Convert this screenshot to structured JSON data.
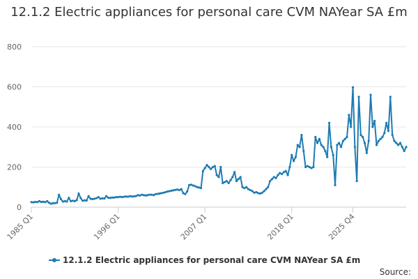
{
  "chart_data": {
    "type": "line",
    "title": "12.1.2 Electric appliances for personal care CVM NAYear SA £m",
    "xlabel": "",
    "ylabel": "",
    "ylim": [
      0,
      800
    ],
    "yticks": [
      0,
      200,
      400,
      600,
      800
    ],
    "x_tick_labels": [
      "1985 Q1",
      "1996 Q1",
      "2007 Q1",
      "2018 Q1",
      "2025 Q4"
    ],
    "series_color": "#1d7bb3",
    "grid": true,
    "legend_position": "bottom",
    "source_label": "Source:",
    "series": [
      {
        "name": "12.1.2 Electric appliances for personal care CVM NAYear SA £m",
        "start_year": 1985,
        "start_quarter": 1,
        "values": [
          25,
          24,
          26,
          25,
          30,
          26,
          27,
          25,
          30,
          22,
          17,
          20,
          20,
          22,
          62,
          40,
          28,
          30,
          28,
          46,
          30,
          32,
          30,
          35,
          68,
          45,
          32,
          34,
          33,
          55,
          42,
          40,
          42,
          45,
          50,
          42,
          44,
          43,
          55,
          47,
          46,
          48,
          48,
          50,
          50,
          52,
          50,
          52,
          53,
          52,
          55,
          53,
          54,
          55,
          60,
          58,
          62,
          60,
          58,
          60,
          62,
          62,
          60,
          65,
          66,
          68,
          70,
          72,
          75,
          78,
          80,
          82,
          84,
          86,
          88,
          85,
          90,
          70,
          65,
          78,
          110,
          112,
          108,
          105,
          100,
          98,
          95,
          180,
          195,
          210,
          200,
          190,
          200,
          205,
          160,
          150,
          200,
          120,
          125,
          130,
          120,
          135,
          150,
          175,
          130,
          140,
          150,
          100,
          95,
          100,
          90,
          85,
          80,
          72,
          75,
          70,
          68,
          72,
          80,
          90,
          100,
          130,
          140,
          150,
          145,
          160,
          170,
          165,
          175,
          180,
          160,
          200,
          260,
          230,
          250,
          310,
          300,
          360,
          280,
          200,
          205,
          200,
          195,
          200,
          350,
          320,
          340,
          310,
          300,
          280,
          250,
          420,
          300,
          260,
          110,
          310,
          320,
          300,
          330,
          340,
          350,
          460,
          400,
          598,
          300,
          130,
          550,
          360,
          350,
          320,
          270,
          330,
          560,
          400,
          430,
          310,
          330,
          340,
          350,
          370,
          420,
          380,
          550,
          360,
          330,
          320,
          310,
          320,
          300,
          280,
          300
        ]
      }
    ]
  }
}
